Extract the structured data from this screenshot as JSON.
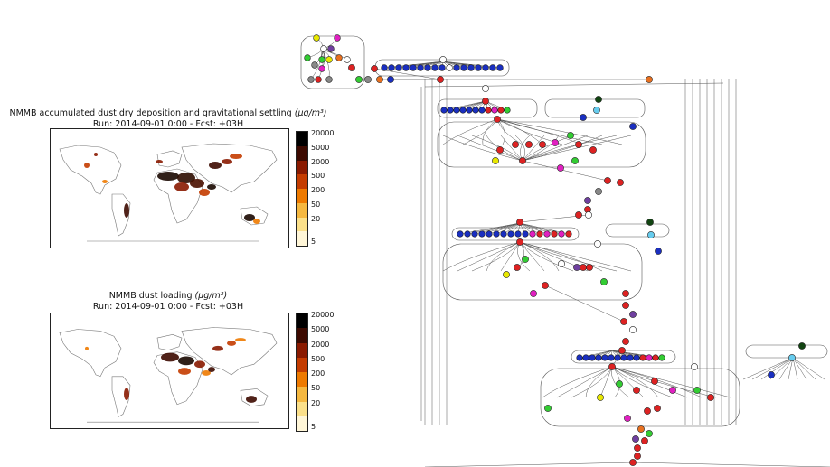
{
  "panels": [
    {
      "id": "deposition",
      "title_line1": "NMMB accumulated dust dry deposition and gravitational settling",
      "unit": "(μg/m³)",
      "title_line2": "Run: 2014-09-01 0:00 - Fcst: +03H"
    },
    {
      "id": "loading",
      "title_line1": "NMMB dust loading",
      "unit": "(μg/m³)",
      "title_line2": "Run: 2014-09-01 0:00 - Fcst: +03H"
    }
  ],
  "colorbar": {
    "ticks": [
      "20000",
      "5000",
      "2000",
      "500",
      "200",
      "50",
      "20",
      "5"
    ],
    "colors": [
      "#000000",
      "#3d0a00",
      "#8a1a00",
      "#c43c00",
      "#ee7a00",
      "#f5b840",
      "#fbe08a",
      "#fff6d8"
    ]
  },
  "node_colors": {
    "red": "#dd2222",
    "blue": "#1a2fc0",
    "green": "#33cc33",
    "yellow": "#e8e800",
    "magenta": "#e020c0",
    "lightblue": "#66ccee",
    "orange": "#e87020",
    "purple": "#7040a0",
    "gray": "#888888",
    "white": "#ffffff",
    "darkgreen": "#114411"
  }
}
